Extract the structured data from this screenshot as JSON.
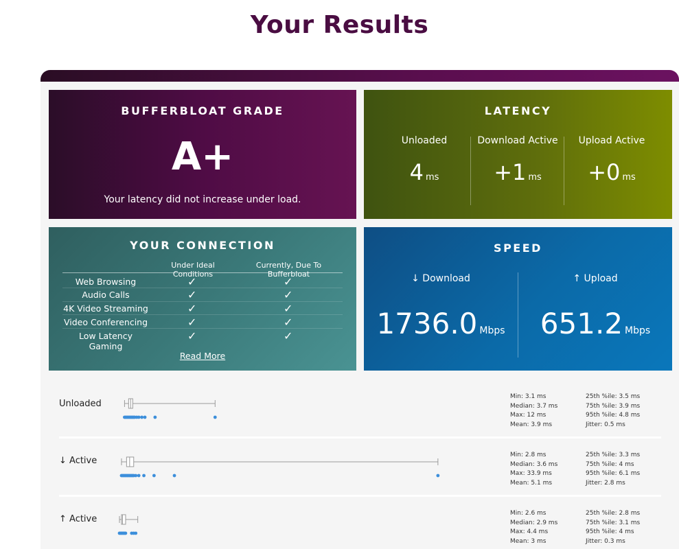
{
  "page": {
    "title": "Your Results"
  },
  "grade": {
    "title": "BUFFERBLOAT GRADE",
    "value": "A+",
    "message": "Your latency did not increase under load."
  },
  "latency": {
    "title": "LATENCY",
    "unit": "ms",
    "cols": [
      {
        "label": "Unloaded",
        "value": "4"
      },
      {
        "label": "Download Active",
        "value": "+1"
      },
      {
        "label": "Upload Active",
        "value": "+0"
      }
    ]
  },
  "connection": {
    "title": "YOUR CONNECTION",
    "col_ideal": "Under Ideal Conditions",
    "col_current": "Currently, Due To Bufferbloat",
    "check": "✓",
    "rows": [
      {
        "label": "Web Browsing",
        "ideal": true,
        "current": true
      },
      {
        "label": "Audio Calls",
        "ideal": true,
        "current": true
      },
      {
        "label": "4K Video Streaming",
        "ideal": true,
        "current": true
      },
      {
        "label": "Video Conferencing",
        "ideal": true,
        "current": true
      },
      {
        "label": "Low Latency Gaming",
        "ideal": true,
        "current": true
      }
    ],
    "read_more": "Read More"
  },
  "speed": {
    "title": "SPEED",
    "unit": "Mbps",
    "download": {
      "label": "↓ Download",
      "value": "1736.0"
    },
    "upload": {
      "label": "↑ Upload",
      "value": "651.2"
    }
  },
  "distributions": [
    {
      "label": "Unloaded",
      "stats_left": [
        "Min: 3.1 ms",
        "Median: 3.7 ms",
        "Max: 12 ms",
        "Mean: 3.9 ms"
      ],
      "stats_right": [
        "25th %ile: 3.5 ms",
        "75th %ile: 3.9 ms",
        "95th %ile: 4.8 ms",
        "Jitter: 0.5 ms"
      ],
      "min": 3.1,
      "q1": 3.5,
      "median": 3.7,
      "q3": 3.9,
      "max": 12,
      "points": [
        3.1,
        3.2,
        3.3,
        3.4,
        3.5,
        3.6,
        3.7,
        3.8,
        3.9,
        4.0,
        4.1,
        4.3,
        4.5,
        4.8,
        5.1,
        6.1,
        12
      ]
    },
    {
      "label": "↓ Active",
      "stats_left": [
        "Min: 2.8 ms",
        "Median: 3.6 ms",
        "Max: 33.9 ms",
        "Mean: 5.1 ms"
      ],
      "stats_right": [
        "25th %ile: 3.3 ms",
        "75th %ile: 4 ms",
        "95th %ile: 6.1 ms",
        "Jitter: 2.8 ms"
      ],
      "min": 2.8,
      "q1": 3.3,
      "median": 3.6,
      "q3": 4.0,
      "max": 33.9,
      "points": [
        2.8,
        2.9,
        3.0,
        3.1,
        3.2,
        3.3,
        3.4,
        3.5,
        3.6,
        3.7,
        3.8,
        3.9,
        4.0,
        4.2,
        4.5,
        5.0,
        6.0,
        8.0,
        33.9
      ]
    },
    {
      "label": "↑ Active",
      "stats_left": [
        "Min: 2.6 ms",
        "Median: 2.9 ms",
        "Max: 4.4 ms",
        "Mean: 3 ms"
      ],
      "stats_right": [
        "25th %ile: 2.8 ms",
        "75th %ile: 3.1 ms",
        "95th %ile: 4 ms",
        "Jitter: 0.3 ms"
      ],
      "min": 2.6,
      "q1": 2.8,
      "median": 2.9,
      "q3": 3.1,
      "max": 4.4,
      "points": [
        2.6,
        2.7,
        2.8,
        2.9,
        3.0,
        3.1,
        3.2,
        3.8,
        4.0,
        4.2
      ]
    }
  ]
}
